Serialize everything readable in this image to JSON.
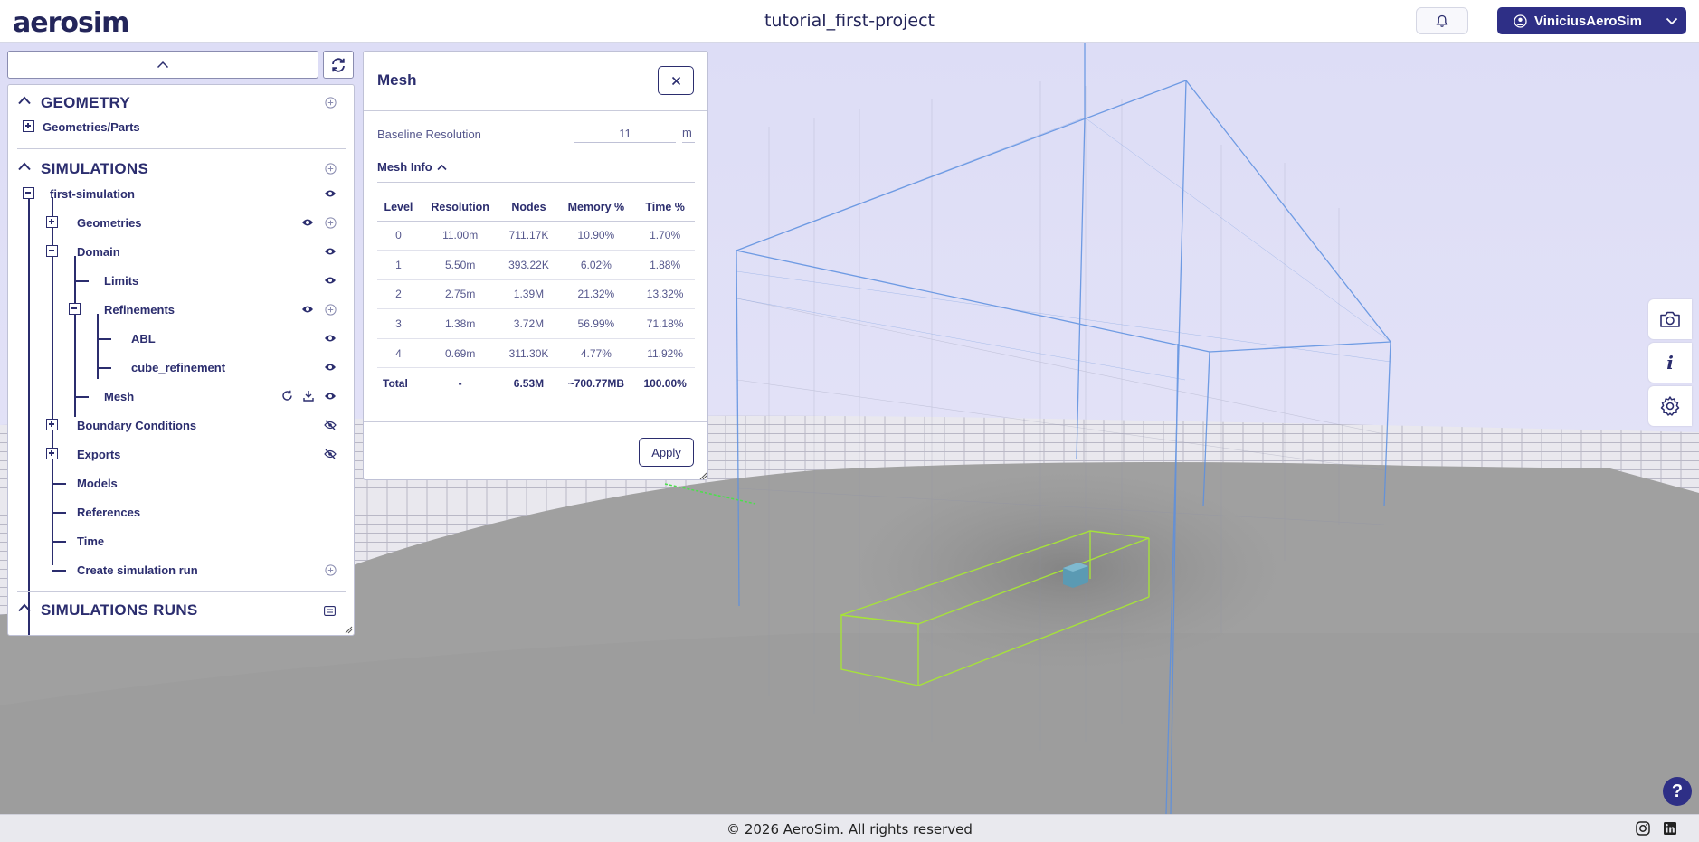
{
  "header": {
    "logo": "aerosim",
    "project_title": "tutorial_first-project",
    "bell_icon": "bell-icon",
    "user_name": "ViniciusAeroSim"
  },
  "tree": {
    "search_value": "",
    "geometry_section": "GEOMETRY",
    "geometries_parts": "Geometries/Parts",
    "simulations_section": "SIMULATIONS",
    "simulation_name": "first-simulation",
    "geometries": "Geometries",
    "domain": "Domain",
    "limits": "Limits",
    "refinements": "Refinements",
    "abl": "ABL",
    "cube_refinement": "cube_refinement",
    "mesh": "Mesh",
    "boundary_conditions": "Boundary Conditions",
    "exports": "Exports",
    "models": "Models",
    "references": "References",
    "time": "Time",
    "create_run": "Create simulation run",
    "runs_section": "SIMULATIONS RUNS"
  },
  "mesh_dialog": {
    "title": "Mesh",
    "baseline_label": "Baseline Resolution",
    "baseline_value": "11",
    "baseline_unit": "m",
    "mesh_info_label": "Mesh Info",
    "columns": [
      "Level",
      "Resolution",
      "Nodes",
      "Memory %",
      "Time %"
    ],
    "rows": [
      [
        "0",
        "11.00m",
        "711.17K",
        "10.90%",
        "1.70%"
      ],
      [
        "1",
        "5.50m",
        "393.22K",
        "6.02%",
        "1.88%"
      ],
      [
        "2",
        "2.75m",
        "1.39M",
        "21.32%",
        "13.32%"
      ],
      [
        "3",
        "1.38m",
        "3.72M",
        "56.99%",
        "71.18%"
      ],
      [
        "4",
        "0.69m",
        "311.30K",
        "4.77%",
        "11.92%"
      ]
    ],
    "total": [
      "Total",
      "-",
      "6.53M",
      "~700.77MB",
      "100.00%"
    ],
    "apply_label": "Apply"
  },
  "tools": {
    "info_label": "i",
    "help_label": "?"
  },
  "footer": {
    "copyright": "© 2026 AeroSim. All rights reserved"
  }
}
